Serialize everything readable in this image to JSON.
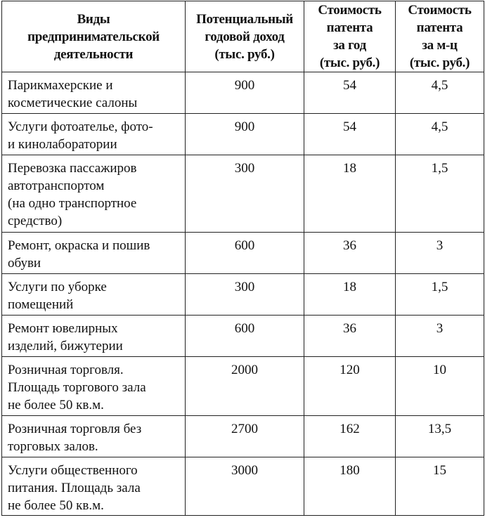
{
  "header": [
    [
      "Виды",
      "предпринимательской",
      "деятельности"
    ],
    [
      "Потенциальный",
      "годовой доход",
      "(тыс. руб.)"
    ],
    [
      "Стоимость",
      "патента",
      "за год",
      "(тыс. руб.)"
    ],
    [
      "Стоимость",
      "патента",
      "за м-ц",
      "(тыс. руб.)"
    ]
  ],
  "rows": [
    {
      "name": [
        "Парикмахерские и",
        "косметические салоны"
      ],
      "income": "900",
      "year": "54",
      "month": "4,5"
    },
    {
      "name": [
        "Услуги фотоателье, фото-",
        "и кинолаборатории"
      ],
      "income": "900",
      "year": "54",
      "month": "4,5"
    },
    {
      "name": [
        "Перевозка пассажиров",
        "автотранспортом",
        "(на одно транспортное",
        "средство)"
      ],
      "income": "300",
      "year": "18",
      "month": "1,5"
    },
    {
      "name": [
        "Ремонт, окраска и пошив",
        "обуви"
      ],
      "income": "600",
      "year": "36",
      "month": "3"
    },
    {
      "name": [
        "Услуги по уборке",
        "помещений"
      ],
      "income": "300",
      "year": "18",
      "month": "1,5"
    },
    {
      "name": [
        "Ремонт ювелирных",
        "изделий, бижутерии"
      ],
      "income": "600",
      "year": "36",
      "month": "3"
    },
    {
      "name": [
        "Розничная торговля.",
        "Площадь торгового зала",
        "не более 50 кв.м."
      ],
      "income": "2000",
      "year": "120",
      "month": "10"
    },
    {
      "name": [
        "Розничная торговля без",
        "торговых залов."
      ],
      "income": "2700",
      "year": "162",
      "month": "13,5"
    },
    {
      "name": [
        "Услуги общественного",
        "питания. Площадь зала",
        "не более 50 кв.м."
      ],
      "income": "3000",
      "year": "180",
      "month": "15"
    }
  ]
}
